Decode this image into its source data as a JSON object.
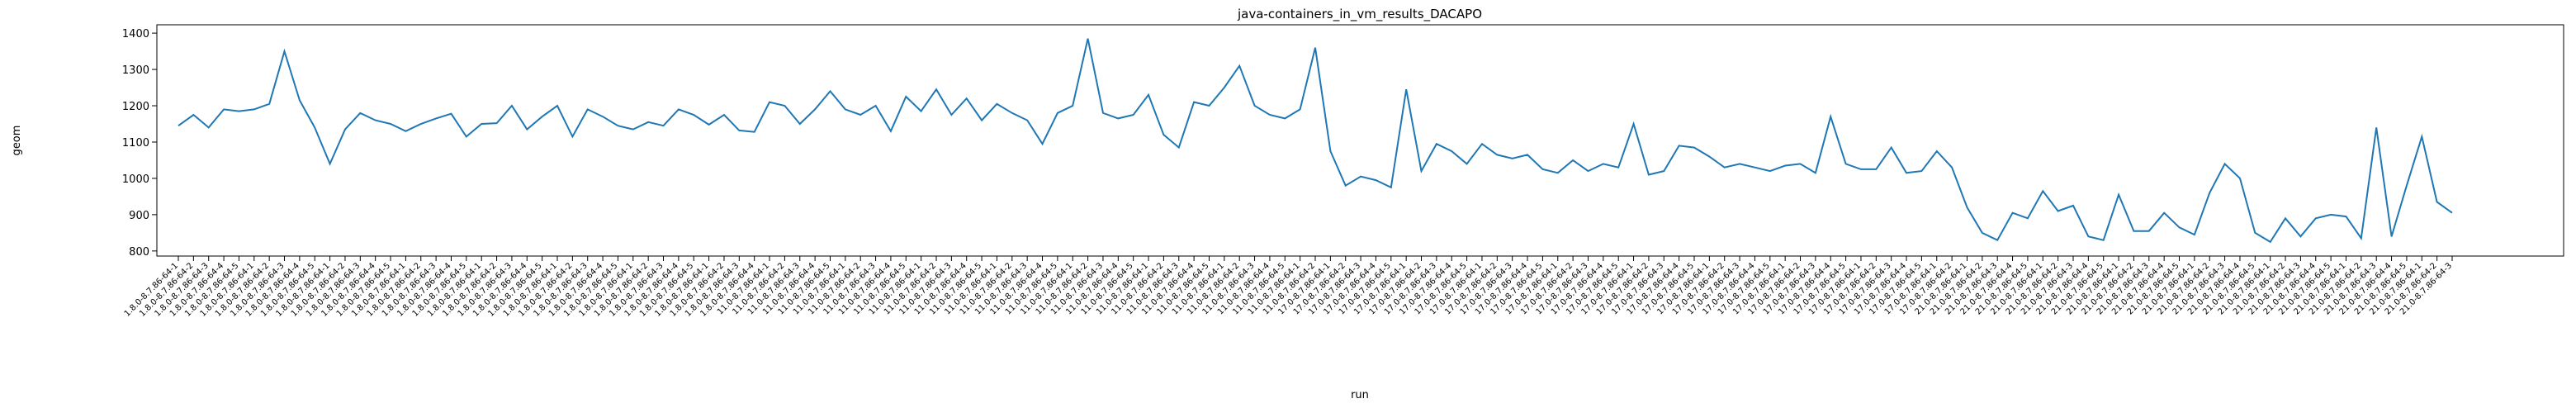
{
  "chart_data": {
    "type": "line",
    "title": "java-containers_in_vm_results_DACAPO",
    "x_label": "run",
    "y_label": "geom",
    "color": "#1f77b4",
    "ylim": [
      786,
      1423
    ],
    "yticks": [
      800,
      900,
      1000,
      1100,
      1200,
      1300,
      1400
    ],
    "categories": [
      "1.8.0-8.7.86-64-1",
      "1.8.0-8.7.86-64-2",
      "1.8.0-8.7.86-64-3",
      "1.8.0-8.7.86-64-4",
      "1.8.0-8.7.86-64-5",
      "1.8.0-8.7.86-64-1",
      "1.8.0-8.7.86-64-2",
      "1.8.0-8.7.86-64-3",
      "1.8.0-8.7.86-64-4",
      "1.8.0-8.7.86-64-5",
      "1.8.0-8.7.86-64-1",
      "1.8.0-8.7.86-64-2",
      "1.8.0-8.7.86-64-3",
      "1.8.0-8.7.86-64-4",
      "1.8.0-8.7.86-64-5",
      "1.8.0-8.7.86-64-1",
      "1.8.0-8.7.86-64-2",
      "1.8.0-8.7.86-64-3",
      "1.8.0-8.7.86-64-4",
      "1.8.0-8.7.86-64-5",
      "1.8.0-8.7.86-64-1",
      "1.8.0-8.7.86-64-2",
      "1.8.0-8.7.86-64-3",
      "1.8.0-8.7.86-64-4",
      "1.8.0-8.7.86-64-5",
      "1.8.0-8.7.86-64-1",
      "1.8.0-8.7.86-64-2",
      "1.8.0-8.7.86-64-3",
      "1.8.0-8.7.86-64-4",
      "1.8.0-8.7.86-64-5",
      "1.8.0-8.7.86-64-1",
      "1.8.0-8.7.86-64-2",
      "1.8.0-8.7.86-64-3",
      "1.8.0-8.7.86-64-4",
      "1.8.0-8.7.86-64-5",
      "1.8.0-8.7.86-64-1",
      "1.8.0-8.7.86-64-2",
      "1.8.0-8.7.86-64-3",
      "1.8.0-8.7.86-64-4",
      "11.0-8.7.86-64-1",
      "11.0-8.7.86-64-2",
      "11.0-8.7.86-64-3",
      "11.0-8.7.86-64-4",
      "11.0-8.7.86-64-5",
      "11.0-8.7.86-64-1",
      "11.0-8.7.86-64-2",
      "11.0-8.7.86-64-3",
      "11.0-8.7.86-64-4",
      "11.0-8.7.86-64-5",
      "11.0-8.7.86-64-1",
      "11.0-8.7.86-64-2",
      "11.0-8.7.86-64-3",
      "11.0-8.7.86-64-4",
      "11.0-8.7.86-64-5",
      "11.0-8.7.86-64-1",
      "11.0-8.7.86-64-2",
      "11.0-8.7.86-64-3",
      "11.0-8.7.86-64-4",
      "11.0-8.7.86-64-5",
      "11.0-8.7.86-64-1",
      "11.0-8.7.86-64-2",
      "11.0-8.7.86-64-3",
      "11.0-8.7.86-64-4",
      "11.0-8.7.86-64-5",
      "11.0-8.7.86-64-1",
      "11.0-8.7.86-64-2",
      "11.0-8.7.86-64-3",
      "11.0-8.7.86-64-4",
      "11.0-8.7.86-64-5",
      "11.0-8.7.86-64-1",
      "11.0-8.7.86-64-2",
      "11.0-8.7.86-64-3",
      "11.0-8.7.86-64-4",
      "11.0-8.7.86-64-5",
      "11.0-8.7.86-64-1",
      "11.0-8.7.86-64-2",
      "17.0-8.7.86-64-1",
      "17.0-8.7.86-64-2",
      "17.0-8.7.86-64-3",
      "17.0-8.7.86-64-4",
      "17.0-8.7.86-64-5",
      "17.0-8.7.86-64-1",
      "17.0-8.7.86-64-2",
      "17.0-8.7.86-64-3",
      "17.0-8.7.86-64-4",
      "17.0-8.7.86-64-5",
      "17.0-8.7.86-64-1",
      "17.0-8.7.86-64-2",
      "17.0-8.7.86-64-3",
      "17.0-8.7.86-64-4",
      "17.0-8.7.86-64-5",
      "17.0-8.7.86-64-1",
      "17.0-8.7.86-64-2",
      "17.0-8.7.86-64-3",
      "17.0-8.7.86-64-4",
      "17.0-8.7.86-64-5",
      "17.0-8.7.86-64-1",
      "17.0-8.7.86-64-2",
      "17.0-8.7.86-64-3",
      "17.0-8.7.86-64-4",
      "17.0-8.7.86-64-5",
      "17.0-8.7.86-64-1",
      "17.0-8.7.86-64-2",
      "17.0-8.7.86-64-3",
      "17.0-8.7.86-64-4",
      "17.0-8.7.86-64-5",
      "17.0-8.7.86-64-1",
      "17.0-8.7.86-64-2",
      "17.0-8.7.86-64-3",
      "17.0-8.7.86-64-4",
      "17.0-8.7.86-64-5",
      "17.0-8.7.86-64-1",
      "17.0-8.7.86-64-2",
      "17.0-8.7.86-64-3",
      "17.0-8.7.86-64-4",
      "17.0-8.7.86-64-5",
      "17.0-8.7.86-64-1",
      "17.0-8.7.86-64-2",
      "21.0-8.7.86-64-1",
      "21.0-8.7.86-64-2",
      "21.0-8.7.86-64-3",
      "21.0-8.7.86-64-4",
      "21.0-8.7.86-64-5",
      "21.0-8.7.86-64-1",
      "21.0-8.7.86-64-2",
      "21.0-8.7.86-64-3",
      "21.0-8.7.86-64-4",
      "21.0-8.7.86-64-5",
      "21.0-8.7.86-64-1",
      "21.0-8.7.86-64-2",
      "21.0-8.7.86-64-3",
      "21.0-8.7.86-64-4",
      "21.0-8.7.86-64-5",
      "21.0-8.7.86-64-1",
      "21.0-8.7.86-64-2",
      "21.0-8.7.86-64-3",
      "21.0-8.7.86-64-4",
      "21.0-8.7.86-64-5",
      "21.0-8.7.86-64-1",
      "21.0-8.7.86-64-2",
      "21.0-8.7.86-64-3",
      "21.0-8.7.86-64-4",
      "21.0-8.7.86-64-5",
      "21.0-8.7.86-64-1",
      "21.0-8.7.86-64-2",
      "21.0-8.7.86-64-3",
      "21.0-8.7.86-64-4",
      "21.0-8.7.86-64-5",
      "21.0-8.7.86-64-1",
      "21.0-8.7.86-64-2",
      "21.0-8.7.86-64-3"
    ],
    "values": [
      1145,
      1175,
      1140,
      1190,
      1185,
      1190,
      1205,
      1350,
      1215,
      1140,
      1040,
      1135,
      1180,
      1160,
      1150,
      1130,
      1150,
      1165,
      1178,
      1115,
      1150,
      1152,
      1200,
      1135,
      1170,
      1200,
      1115,
      1190,
      1170,
      1145,
      1135,
      1155,
      1145,
      1190,
      1175,
      1148,
      1175,
      1132,
      1128,
      1210,
      1200,
      1150,
      1190,
      1240,
      1190,
      1175,
      1200,
      1130,
      1225,
      1185,
      1245,
      1175,
      1220,
      1160,
      1205,
      1180,
      1160,
      1095,
      1180,
      1200,
      1385,
      1180,
      1165,
      1175,
      1230,
      1120,
      1085,
      1210,
      1200,
      1250,
      1310,
      1200,
      1175,
      1165,
      1190,
      1360,
      1075,
      980,
      1005,
      995,
      975,
      1245,
      1020,
      1095,
      1075,
      1040,
      1095,
      1065,
      1055,
      1065,
      1025,
      1015,
      1050,
      1020,
      1040,
      1030,
      1150,
      1010,
      1020,
      1090,
      1085,
      1060,
      1030,
      1040,
      1030,
      1020,
      1035,
      1040,
      1015,
      1170,
      1040,
      1025,
      1025,
      1085,
      1015,
      1020,
      1075,
      1030,
      920,
      850,
      830,
      905,
      890,
      965,
      910,
      925,
      840,
      830,
      955,
      855,
      855,
      905,
      865,
      845,
      960,
      1040,
      1000,
      850,
      825,
      890,
      840,
      890,
      900,
      895,
      835,
      1140,
      840,
      980,
      1115,
      935,
      905
    ]
  }
}
